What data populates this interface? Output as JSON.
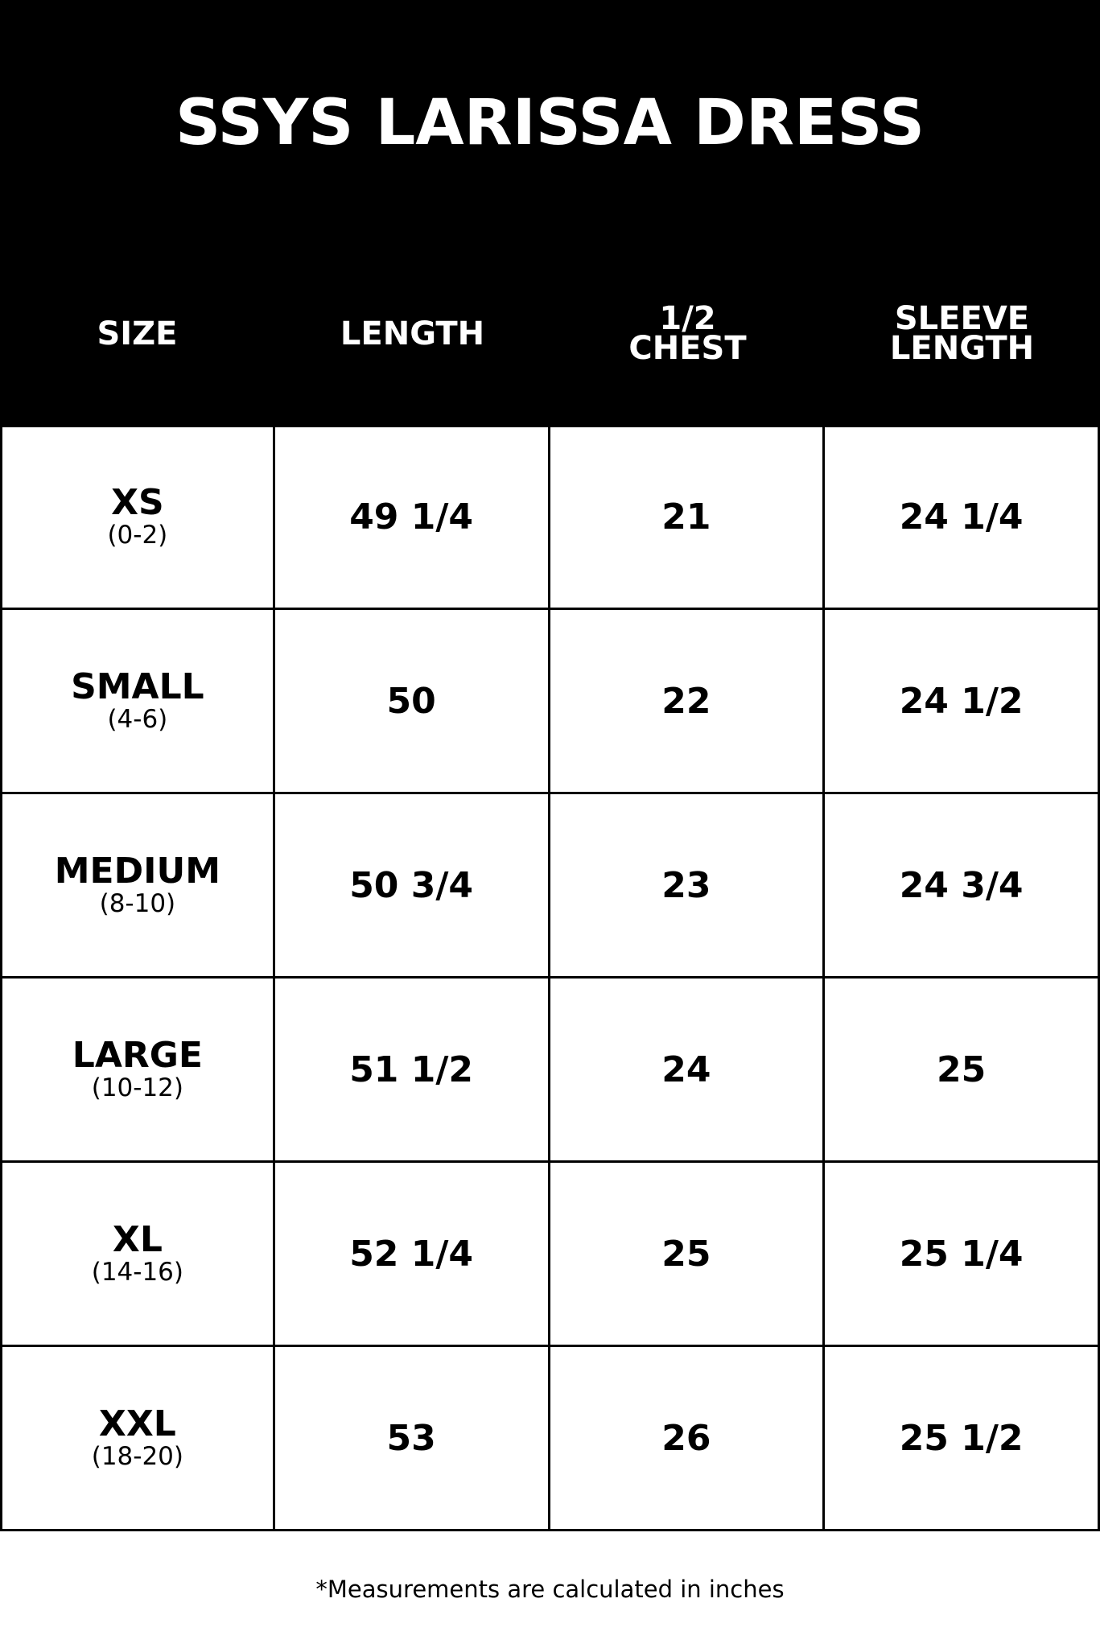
{
  "title": "SSYS LARISSA DRESS",
  "columns": [
    "SIZE",
    "LENGTH",
    "1/2\nCHEST",
    "SLEEVE\nLENGTH"
  ],
  "rows": [
    {
      "size": "XS",
      "range": "(0-2)",
      "length": "49 1/4",
      "chest": "21",
      "sleeve": "24 1/4"
    },
    {
      "size": "SMALL",
      "range": "(4-6)",
      "length": "50",
      "chest": "22",
      "sleeve": "24 1/2"
    },
    {
      "size": "MEDIUM",
      "range": "(8-10)",
      "length": "50 3/4",
      "chest": "23",
      "sleeve": "24 3/4"
    },
    {
      "size": "LARGE",
      "range": "(10-12)",
      "length": "51 1/2",
      "chest": "24",
      "sleeve": "25"
    },
    {
      "size": "XL",
      "range": "(14-16)",
      "length": "52 1/4",
      "chest": "25",
      "sleeve": "25 1/4"
    },
    {
      "size": "XXL",
      "range": "(18-20)",
      "length": "53",
      "chest": "26",
      "sleeve": "25 1/2"
    }
  ],
  "footer": "*Measurements are calculated in inches"
}
